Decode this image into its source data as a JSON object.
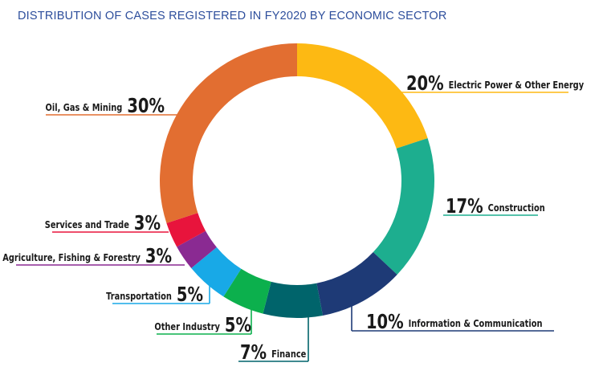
{
  "chart_data": {
    "type": "pie",
    "title": "DISTRIBUTION OF CASES REGISTERED IN FY2020 BY ECONOMIC SECTOR",
    "unit": "%",
    "slices": [
      {
        "label": "Electric Power & Other Energy",
        "value": 20,
        "pct_text": "20%",
        "color": "#FDB913"
      },
      {
        "label": "Construction",
        "value": 17,
        "pct_text": "17%",
        "color": "#1DAE8F"
      },
      {
        "label": "Information & Communication",
        "value": 10,
        "pct_text": "10%",
        "color": "#1E3A76"
      },
      {
        "label": "Finance",
        "value": 7,
        "pct_text": "7%",
        "color": "#00646B"
      },
      {
        "label": "Other Industry",
        "value": 5,
        "pct_text": "5%",
        "color": "#0CB04D"
      },
      {
        "label": "Transportation",
        "value": 5,
        "pct_text": "5%",
        "color": "#18A9E7"
      },
      {
        "label": "Agriculture, Fishing & Forestry",
        "value": 3,
        "pct_text": "3%",
        "color": "#8A2A92"
      },
      {
        "label": "Services and Trade",
        "value": 3,
        "pct_text": "3%",
        "color": "#E8143C"
      },
      {
        "label": "Oil, Gas & Mining",
        "value": 30,
        "pct_text": "30%",
        "color": "#E26E31"
      }
    ]
  }
}
